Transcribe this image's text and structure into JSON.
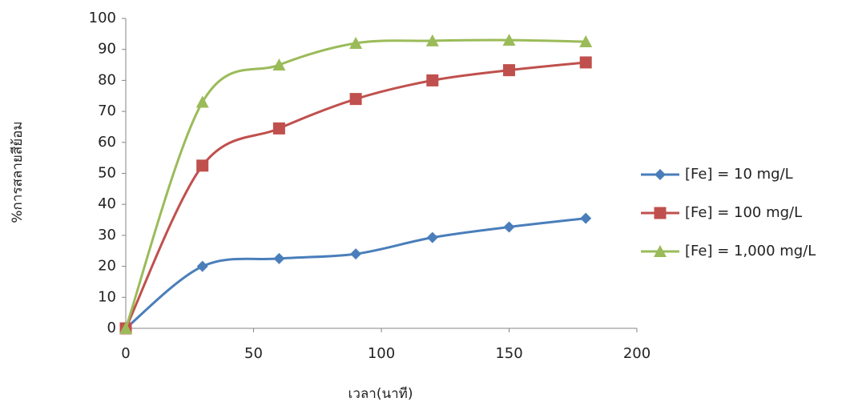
{
  "chart_data": {
    "type": "line",
    "smooth": true,
    "x_label": "เวลา(นาที)",
    "y_label": "%การสลายสีย้อม",
    "x": [
      0,
      30,
      60,
      90,
      120,
      150,
      180
    ],
    "series": [
      {
        "name": "[Fe] = 10 mg/L",
        "color": "#4a7ebb",
        "marker": "diamond",
        "values": [
          0,
          20,
          22.5,
          24,
          29.3,
          32.7,
          35.5
        ]
      },
      {
        "name": "[Fe] = 100 mg/L",
        "color": "#c0504d",
        "marker": "square",
        "values": [
          0,
          52.5,
          64.5,
          74,
          80,
          83.3,
          85.8
        ]
      },
      {
        "name": "[Fe] = 1,000 mg/L",
        "color": "#9bbb59",
        "marker": "triangle",
        "values": [
          0,
          73,
          85,
          92,
          92.8,
          93,
          92.5
        ]
      }
    ],
    "xlim": [
      0,
      200
    ],
    "xticks": [
      0,
      50,
      100,
      150,
      200
    ],
    "ylim": [
      0,
      100
    ],
    "yticks": [
      0,
      10,
      20,
      30,
      40,
      50,
      60,
      70,
      80,
      90,
      100
    ],
    "legend": "right"
  }
}
